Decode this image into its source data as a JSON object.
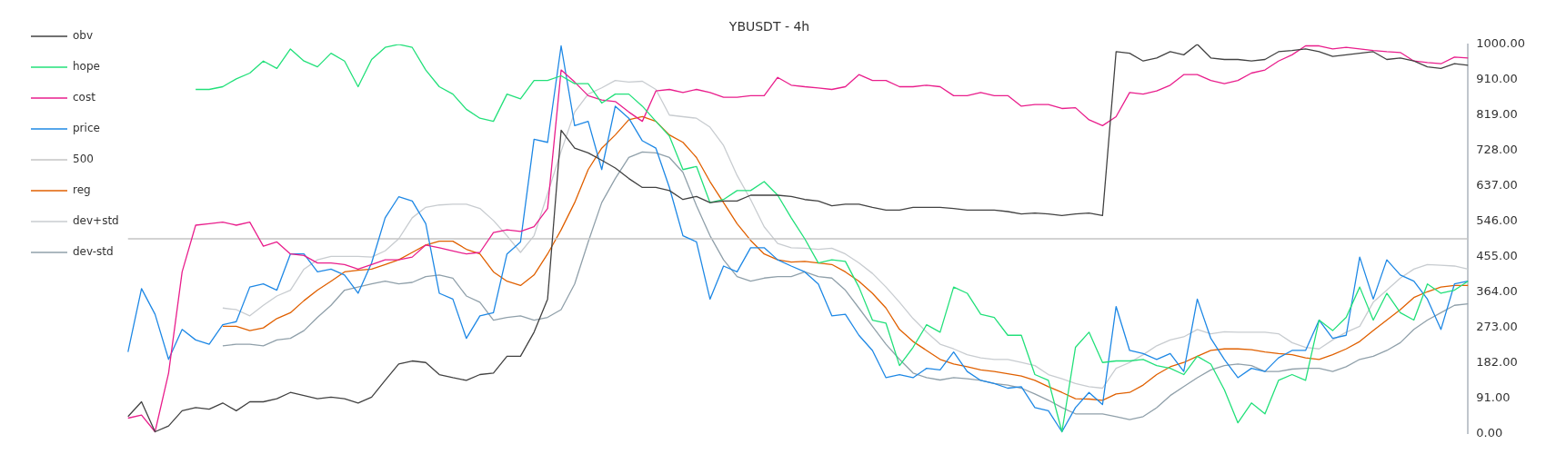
{
  "chart_data": {
    "type": "line",
    "title": "YBUSDT - 4h",
    "categories": [
      null,
      null,
      null,
      null,
      null,
      null,
      null,
      null,
      null,
      null,
      null,
      null,
      null,
      null,
      null,
      null,
      null,
      null,
      null,
      null,
      null,
      null,
      null,
      null,
      null,
      null,
      null,
      null,
      null,
      null,
      null,
      null,
      null,
      null,
      null,
      null,
      null,
      null,
      null,
      null,
      null,
      null,
      null,
      null,
      null,
      null,
      null,
      null,
      null,
      null,
      null,
      null,
      null,
      null,
      null,
      null,
      null,
      null,
      null,
      null,
      null,
      null,
      null,
      null,
      null,
      null,
      null,
      null,
      null,
      null,
      null,
      null,
      null,
      null,
      null,
      null,
      null,
      null,
      null,
      null,
      null,
      null,
      null,
      null,
      null,
      null,
      null,
      null,
      null,
      null,
      null,
      null,
      null,
      null,
      null,
      null,
      null,
      null,
      null,
      null
    ],
    "series": [
      {
        "name": "obv",
        "color": "#424242",
        "values": [
          43,
          81,
          4,
          19,
          58,
          66,
          62,
          78,
          58,
          81,
          81,
          89,
          105,
          97,
          89,
          93,
          89,
          78,
          93,
          136,
          178,
          186,
          182,
          151,
          143,
          136,
          151,
          155,
          198,
          198,
          260,
          345,
          779,
          733,
          721,
          702,
          682,
          655,
          632,
          632,
          624,
          601,
          609,
          593,
          597,
          597,
          612,
          612,
          612,
          609,
          601,
          597,
          585,
          589,
          589,
          581,
          574,
          574,
          581,
          581,
          581,
          578,
          574,
          574,
          574,
          570,
          564,
          566,
          564,
          560,
          564,
          566,
          560,
          981,
          977,
          957,
          965,
          981,
          973,
          1000,
          965,
          961,
          961,
          957,
          961,
          981,
          984,
          988,
          981,
          969,
          973,
          977,
          981,
          961,
          965,
          957,
          942,
          938,
          950,
          946
        ]
      },
      {
        "name": "hope",
        "color": "#22e07a",
        "values": [
          null,
          null,
          null,
          null,
          null,
          884,
          884,
          891,
          911,
          926,
          957,
          938,
          988,
          957,
          942,
          977,
          957,
          891,
          961,
          992,
          1000,
          992,
          934,
          891,
          872,
          833,
          810,
          802,
          872,
          860,
          907,
          907,
          919,
          899,
          899,
          849,
          872,
          872,
          841,
          802,
          764,
          678,
          686,
          593,
          601,
          624,
          624,
          647,
          612,
          554,
          500,
          438,
          446,
          442,
          376,
          291,
          283,
          174,
          221,
          279,
          260,
          376,
          360,
          306,
          298,
          252,
          252,
          151,
          136,
          4,
          221,
          260,
          182,
          186,
          186,
          190,
          174,
          167,
          151,
          198,
          178,
          112,
          27,
          78,
          50,
          136,
          151,
          136,
          291,
          264,
          298,
          376,
          291,
          360,
          310,
          291,
          384,
          360,
          368,
          391
        ]
      },
      {
        "name": "cost",
        "color": "#e91e8c",
        "values": [
          39,
          47,
          4,
          155,
          415,
          535,
          539,
          543,
          535,
          543,
          481,
          492,
          461,
          457,
          438,
          438,
          434,
          422,
          434,
          446,
          446,
          453,
          484,
          477,
          469,
          461,
          465,
          516,
          523,
          519,
          531,
          578,
          934,
          903,
          868,
          857,
          853,
          826,
          802,
          880,
          884,
          876,
          884,
          876,
          864,
          864,
          868,
          868,
          915,
          895,
          891,
          888,
          884,
          891,
          922,
          907,
          907,
          891,
          891,
          895,
          891,
          868,
          868,
          876,
          868,
          868,
          841,
          845,
          845,
          835,
          837,
          806,
          791,
          814,
          876,
          872,
          880,
          895,
          922,
          922,
          907,
          899,
          907,
          926,
          934,
          957,
          973,
          996,
          996,
          988,
          992,
          988,
          984,
          981,
          979,
          957,
          953,
          950,
          967,
          965
        ]
      },
      {
        "name": "price",
        "color": "#1e88e5",
        "values": [
          209,
          372,
          306,
          190,
          267,
          240,
          229,
          279,
          287,
          376,
          384,
          368,
          461,
          461,
          415,
          422,
          407,
          360,
          438,
          554,
          608,
          597,
          539,
          360,
          345,
          244,
          302,
          310,
          461,
          492,
          756,
          748,
          996,
          791,
          802,
          678,
          841,
          810,
          752,
          733,
          632,
          508,
          492,
          345,
          430,
          415,
          477,
          477,
          446,
          430,
          415,
          384,
          302,
          306,
          252,
          213,
          143,
          151,
          143,
          167,
          163,
          209,
          159,
          136,
          128,
          116,
          120,
          66,
          58,
          4,
          66,
          105,
          74,
          326,
          213,
          205,
          190,
          205,
          159,
          345,
          244,
          190,
          143,
          167,
          159,
          194,
          213,
          213,
          291,
          244,
          252,
          453,
          345,
          446,
          407,
          391,
          345,
          267,
          384,
          391
        ]
      },
      {
        "name": "500",
        "color": "#c4c4c4",
        "values": [
          500,
          500,
          500,
          500,
          500,
          500,
          500,
          500,
          500,
          500,
          500,
          500,
          500,
          500,
          500,
          500,
          500,
          500,
          500,
          500,
          500,
          500,
          500,
          500,
          500,
          500,
          500,
          500,
          500,
          500,
          500,
          500,
          500,
          500,
          500,
          500,
          500,
          500,
          500,
          500,
          500,
          500,
          500,
          500,
          500,
          500,
          500,
          500,
          500,
          500,
          500,
          500,
          500,
          500,
          500,
          500,
          500,
          500,
          500,
          500,
          500,
          500,
          500,
          500,
          500,
          500,
          500,
          500,
          500,
          500,
          500,
          500,
          500,
          500,
          500,
          500,
          500,
          500,
          500,
          500,
          500,
          500,
          500,
          500,
          500,
          500,
          500,
          500,
          500,
          500,
          500,
          500,
          500,
          500,
          500,
          500,
          500,
          500,
          500,
          500
        ]
      },
      {
        "name": "reg",
        "color": "#e06000",
        "values": [
          null,
          null,
          null,
          null,
          null,
          null,
          null,
          275,
          275,
          264,
          271,
          295,
          310,
          341,
          368,
          391,
          415,
          419,
          422,
          434,
          446,
          465,
          484,
          494,
          494,
          473,
          461,
          415,
          391,
          380,
          407,
          461,
          523,
          593,
          678,
          733,
          767,
          806,
          814,
          802,
          767,
          748,
          709,
          647,
          593,
          539,
          496,
          461,
          446,
          440,
          442,
          438,
          434,
          415,
          391,
          360,
          322,
          267,
          236,
          213,
          190,
          178,
          171,
          163,
          159,
          153,
          147,
          136,
          120,
          105,
          89,
          88,
          85,
          101,
          105,
          124,
          151,
          171,
          182,
          198,
          213,
          217,
          217,
          215,
          209,
          205,
          202,
          194,
          190,
          202,
          217,
          236,
          264,
          291,
          318,
          349,
          364,
          376,
          380,
          380
        ]
      },
      {
        "name": "dev+std",
        "color": "#c8ccd0",
        "values": [
          null,
          null,
          null,
          null,
          null,
          null,
          null,
          322,
          318,
          302,
          329,
          353,
          368,
          422,
          446,
          455,
          455,
          455,
          453,
          469,
          500,
          554,
          581,
          587,
          589,
          589,
          578,
          547,
          508,
          465,
          508,
          616,
          725,
          826,
          872,
          888,
          907,
          903,
          905,
          884,
          818,
          814,
          810,
          787,
          740,
          663,
          601,
          531,
          488,
          477,
          476,
          473,
          476,
          461,
          438,
          411,
          376,
          337,
          295,
          260,
          229,
          217,
          202,
          194,
          190,
          190,
          182,
          174,
          151,
          140,
          128,
          120,
          116,
          167,
          182,
          202,
          225,
          240,
          248,
          267,
          256,
          261,
          260,
          260,
          260,
          256,
          233,
          221,
          217,
          240,
          260,
          275,
          337,
          368,
          399,
          422,
          434,
          432,
          430,
          422
        ]
      },
      {
        "name": "dev-std",
        "color": "#90a0aa",
        "values": [
          null,
          null,
          null,
          null,
          null,
          null,
          null,
          225,
          229,
          229,
          225,
          240,
          244,
          264,
          298,
          329,
          368,
          376,
          384,
          391,
          384,
          388,
          403,
          407,
          399,
          353,
          337,
          291,
          298,
          302,
          291,
          298,
          318,
          384,
          492,
          593,
          655,
          709,
          723,
          721,
          709,
          671,
          585,
          508,
          446,
          403,
          391,
          399,
          403,
          403,
          415,
          403,
          399,
          368,
          322,
          275,
          229,
          190,
          155,
          143,
          137,
          143,
          140,
          136,
          128,
          124,
          116,
          101,
          85,
          66,
          50,
          50,
          50,
          43,
          35,
          43,
          66,
          97,
          120,
          143,
          163,
          174,
          178,
          174,
          159,
          159,
          165,
          167,
          167,
          159,
          171,
          190,
          198,
          213,
          233,
          267,
          291,
          310,
          329,
          333
        ]
      }
    ],
    "ylim": [
      0,
      1000
    ],
    "yticks": [
      {
        "value": 0,
        "label": "0.00"
      },
      {
        "value": 91,
        "label": "91.00"
      },
      {
        "value": 182,
        "label": "182.00"
      },
      {
        "value": 273,
        "label": "273.00"
      },
      {
        "value": 364,
        "label": "364.00"
      },
      {
        "value": 455,
        "label": "455.00"
      },
      {
        "value": 546,
        "label": "546.00"
      },
      {
        "value": 637,
        "label": "637.00"
      },
      {
        "value": 728,
        "label": "728.00"
      },
      {
        "value": 819,
        "label": "819.00"
      },
      {
        "value": 910,
        "label": "910.00"
      },
      {
        "value": 1000,
        "label": "1000.00"
      }
    ],
    "legend": "left",
    "grid": false,
    "tick_labels": "y",
    "marker": "none"
  }
}
